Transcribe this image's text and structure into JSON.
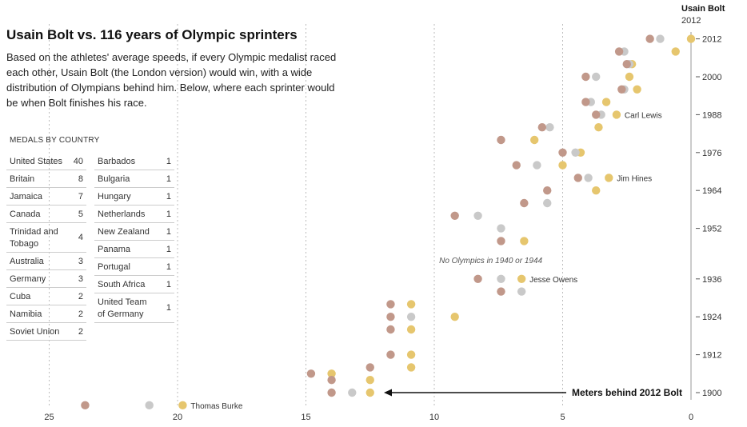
{
  "header": {
    "title": "Usain Bolt vs. 116 years of Olympic sprinters",
    "subtitle": "Based on the athletes' average speeds, if every Olympic medalist raced each other, Usain Bolt (the London version) would win, with a wide distribution of Olympians behind him. Below, where each sprinter would be when Bolt finishes his race."
  },
  "medals": {
    "header": "MEDALS BY COUNTRY",
    "left": [
      {
        "country": "United States",
        "count": "40"
      },
      {
        "country": "Britain",
        "count": "8"
      },
      {
        "country": "Jamaica",
        "count": "7"
      },
      {
        "country": "Canada",
        "count": "5"
      },
      {
        "country": "Trinidad and Tobago",
        "count": "4"
      },
      {
        "country": "Australia",
        "count": "3"
      },
      {
        "country": "Germany",
        "count": "3"
      },
      {
        "country": "Cuba",
        "count": "2"
      },
      {
        "country": "Namibia",
        "count": "2"
      },
      {
        "country": "Soviet Union",
        "count": "2"
      }
    ],
    "right": [
      {
        "country": "Barbados",
        "count": "1"
      },
      {
        "country": "Bulgaria",
        "count": "1"
      },
      {
        "country": "Hungary",
        "count": "1"
      },
      {
        "country": "Netherlands",
        "count": "1"
      },
      {
        "country": "New Zealand",
        "count": "1"
      },
      {
        "country": "Panama",
        "count": "1"
      },
      {
        "country": "Portugal",
        "count": "1"
      },
      {
        "country": "South Africa",
        "count": "1"
      },
      {
        "country": "United Team of Germany",
        "count": "1"
      }
    ]
  },
  "chart_data": {
    "type": "scatter",
    "xlabel": "Meters behind 2012 Bolt",
    "xlim": [
      25,
      0
    ],
    "x_ticks": [
      25,
      20,
      15,
      10,
      5,
      0
    ],
    "ylim": [
      1896,
      2014
    ],
    "y_ticks": [
      1900,
      1912,
      1924,
      1936,
      1952,
      1964,
      1976,
      1988,
      2000,
      2012
    ],
    "colors": {
      "gold": "#e6c66e",
      "silver": "#c9c9c9",
      "bronze": "#c1988a"
    },
    "bolt_label": "Usain Bolt",
    "bolt_year": "2012",
    "annotations": [
      {
        "text": "Carl Lewis",
        "year": 1988,
        "x": 2.9
      },
      {
        "text": "Jim Hines",
        "year": 1968,
        "x": 3.2
      },
      {
        "text": "Jesse Owens",
        "year": 1936,
        "x": 6.6
      },
      {
        "text": "Thomas Burke",
        "year": 1896,
        "x": 19.8
      },
      {
        "text": "No Olympics in 1940 or 1944",
        "year": 1942,
        "x": 7.8
      }
    ],
    "points": [
      {
        "year": 2012,
        "medal": "gold",
        "x": 0
      },
      {
        "year": 2012,
        "medal": "silver",
        "x": 1.2
      },
      {
        "year": 2012,
        "medal": "bronze",
        "x": 1.6
      },
      {
        "year": 2008,
        "medal": "gold",
        "x": 0.6
      },
      {
        "year": 2008,
        "medal": "silver",
        "x": 2.6
      },
      {
        "year": 2008,
        "medal": "bronze",
        "x": 2.8
      },
      {
        "year": 2004,
        "medal": "gold",
        "x": 2.3
      },
      {
        "year": 2004,
        "medal": "silver",
        "x": 2.4
      },
      {
        "year": 2004,
        "medal": "bronze",
        "x": 2.5
      },
      {
        "year": 2000,
        "medal": "gold",
        "x": 2.4
      },
      {
        "year": 2000,
        "medal": "silver",
        "x": 3.7
      },
      {
        "year": 2000,
        "medal": "bronze",
        "x": 4.1
      },
      {
        "year": 1996,
        "medal": "gold",
        "x": 2.1
      },
      {
        "year": 1996,
        "medal": "silver",
        "x": 2.6
      },
      {
        "year": 1996,
        "medal": "bronze",
        "x": 2.7
      },
      {
        "year": 1992,
        "medal": "gold",
        "x": 3.3
      },
      {
        "year": 1992,
        "medal": "silver",
        "x": 3.9
      },
      {
        "year": 1992,
        "medal": "bronze",
        "x": 4.1
      },
      {
        "year": 1988,
        "medal": "gold",
        "x": 2.9
      },
      {
        "year": 1988,
        "medal": "silver",
        "x": 3.5
      },
      {
        "year": 1988,
        "medal": "bronze",
        "x": 3.7
      },
      {
        "year": 1984,
        "medal": "gold",
        "x": 3.6
      },
      {
        "year": 1984,
        "medal": "silver",
        "x": 5.5
      },
      {
        "year": 1984,
        "medal": "bronze",
        "x": 5.8
      },
      {
        "year": 1980,
        "medal": "gold",
        "x": 6.1
      },
      {
        "year": 1980,
        "medal": "bronze",
        "x": 7.4
      },
      {
        "year": 1976,
        "medal": "gold",
        "x": 4.3
      },
      {
        "year": 1976,
        "medal": "silver",
        "x": 4.5
      },
      {
        "year": 1976,
        "medal": "bronze",
        "x": 5.0
      },
      {
        "year": 1972,
        "medal": "gold",
        "x": 5.0
      },
      {
        "year": 1972,
        "medal": "silver",
        "x": 6.0
      },
      {
        "year": 1972,
        "medal": "bronze",
        "x": 6.8
      },
      {
        "year": 1968,
        "medal": "gold",
        "x": 3.2
      },
      {
        "year": 1968,
        "medal": "silver",
        "x": 4.0
      },
      {
        "year": 1968,
        "medal": "bronze",
        "x": 4.4
      },
      {
        "year": 1964,
        "medal": "gold",
        "x": 3.7
      },
      {
        "year": 1964,
        "medal": "bronze",
        "x": 5.6
      },
      {
        "year": 1960,
        "medal": "silver",
        "x": 5.6
      },
      {
        "year": 1960,
        "medal": "bronze",
        "x": 6.5
      },
      {
        "year": 1956,
        "medal": "silver",
        "x": 8.3
      },
      {
        "year": 1956,
        "medal": "bronze",
        "x": 9.2
      },
      {
        "year": 1952,
        "medal": "silver",
        "x": 7.4
      },
      {
        "year": 1948,
        "medal": "gold",
        "x": 6.5
      },
      {
        "year": 1948,
        "medal": "bronze",
        "x": 7.4
      },
      {
        "year": 1936,
        "medal": "gold",
        "x": 6.6
      },
      {
        "year": 1936,
        "medal": "silver",
        "x": 7.4
      },
      {
        "year": 1936,
        "medal": "bronze",
        "x": 8.3
      },
      {
        "year": 1932,
        "medal": "silver",
        "x": 6.6
      },
      {
        "year": 1932,
        "medal": "bronze",
        "x": 7.4
      },
      {
        "year": 1928,
        "medal": "gold",
        "x": 10.9
      },
      {
        "year": 1928,
        "medal": "bronze",
        "x": 11.7
      },
      {
        "year": 1924,
        "medal": "gold",
        "x": 9.2
      },
      {
        "year": 1924,
        "medal": "silver",
        "x": 10.9
      },
      {
        "year": 1924,
        "medal": "bronze",
        "x": 11.7
      },
      {
        "year": 1920,
        "medal": "gold",
        "x": 10.9
      },
      {
        "year": 1920,
        "medal": "bronze",
        "x": 11.7
      },
      {
        "year": 1912,
        "medal": "gold",
        "x": 10.9
      },
      {
        "year": 1912,
        "medal": "bronze",
        "x": 11.7
      },
      {
        "year": 1908,
        "medal": "gold",
        "x": 10.9
      },
      {
        "year": 1908,
        "medal": "bronze",
        "x": 12.5
      },
      {
        "year": 1906,
        "medal": "gold",
        "x": 14.0
      },
      {
        "year": 1906,
        "medal": "bronze",
        "x": 14.8
      },
      {
        "year": 1904,
        "medal": "gold",
        "x": 12.5
      },
      {
        "year": 1904,
        "medal": "bronze",
        "x": 14.0
      },
      {
        "year": 1900,
        "medal": "gold",
        "x": 12.5
      },
      {
        "year": 1900,
        "medal": "silver",
        "x": 13.2
      },
      {
        "year": 1900,
        "medal": "bronze",
        "x": 14.0
      },
      {
        "year": 1896,
        "medal": "gold",
        "x": 19.8
      },
      {
        "year": 1896,
        "medal": "silver",
        "x": 21.1
      },
      {
        "year": 1896,
        "medal": "bronze",
        "x": 23.6
      }
    ]
  }
}
